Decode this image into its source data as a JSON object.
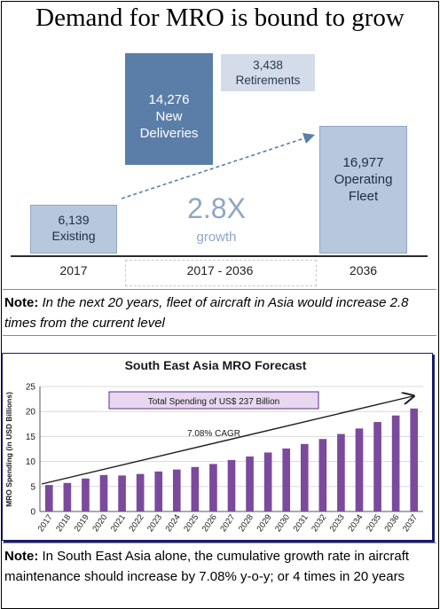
{
  "title": "Demand for MRO is bound to grow",
  "infographic": {
    "existing": "6,139\nExisting",
    "new_deliveries": "14,276\nNew\nDeliveries",
    "retirements": "3,438\nRetirements",
    "operating_fleet": "16,977\nOperating\nFleet",
    "growth_multiple": "2.8X",
    "growth_word": "growth",
    "x_labels": [
      "2017",
      "2017 - 2036",
      "2036"
    ],
    "colors": {
      "dark_blue": "#5b7ea8",
      "light_blue": "#b7c7dc",
      "pale_blue": "#d3dce8"
    }
  },
  "note1": {
    "label": "Note:",
    "text": "  In the next 20 years, fleet of aircraft in Asia would increase 2.8 times from the current level"
  },
  "note2": {
    "label": "Note:",
    "text": " In South East Asia alone, the cumulative growth rate in aircraft maintenance should increase by 7.08% y-o-y; or 4 times in 20 years"
  },
  "chart_data": {
    "type": "bar",
    "title": "South East Asia MRO Forecast",
    "ylabel": "MRO Spending (in USD Billions)",
    "xlabel": "",
    "categories": [
      "2017",
      "2018",
      "2019",
      "2020",
      "2021",
      "2022",
      "2023",
      "2024",
      "2025",
      "2026",
      "2027",
      "2028",
      "2029",
      "2030",
      "2031",
      "2032",
      "2033",
      "2034",
      "2035",
      "2036",
      "2037"
    ],
    "values": [
      5.3,
      5.7,
      6.6,
      7.3,
      7.2,
      7.5,
      8.0,
      8.4,
      8.9,
      9.5,
      10.3,
      11.0,
      11.8,
      12.6,
      13.5,
      14.5,
      15.5,
      16.6,
      17.9,
      19.2,
      20.6
    ],
    "ylim": [
      0,
      25
    ],
    "yticks": [
      "0",
      "5",
      "10",
      "15",
      "20",
      "25"
    ],
    "annotation_box": "Total Spending of US$ 237 Billion",
    "trend_label": "7.08% CAGR",
    "bar_color": "#7b4a9c"
  }
}
